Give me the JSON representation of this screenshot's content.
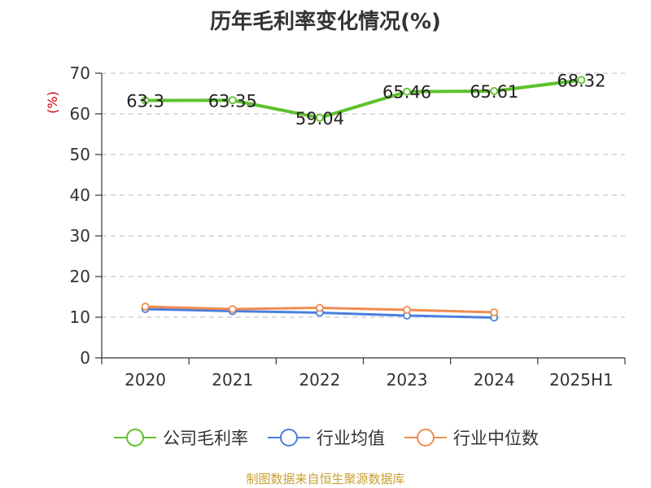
{
  "chart_data": {
    "type": "line",
    "title": "历年毛利率变化情况(%)",
    "ylabel": "(%)",
    "xlabel": "",
    "categories": [
      "2020",
      "2021",
      "2022",
      "2023",
      "2024",
      "2025H1"
    ],
    "ylim": [
      0,
      70
    ],
    "yticks": [
      0,
      10,
      20,
      30,
      40,
      50,
      60,
      70
    ],
    "grid": true,
    "legend_position": "bottom",
    "series": [
      {
        "name": "公司毛利率",
        "color": "#5ec12d",
        "label_values": true,
        "values": [
          63.3,
          63.35,
          59.04,
          65.46,
          65.61,
          68.32
        ]
      },
      {
        "name": "行业均值",
        "color": "#4a7fdc",
        "label_values": false,
        "values": [
          12.0,
          11.5,
          11.1,
          10.4,
          9.9,
          null
        ]
      },
      {
        "name": "行业中位数",
        "color": "#f08c50",
        "label_values": false,
        "values": [
          12.6,
          12.0,
          12.3,
          11.8,
          11.2,
          null
        ]
      }
    ]
  },
  "footer": {
    "source": "制图数据来自恒生聚源数据库"
  }
}
